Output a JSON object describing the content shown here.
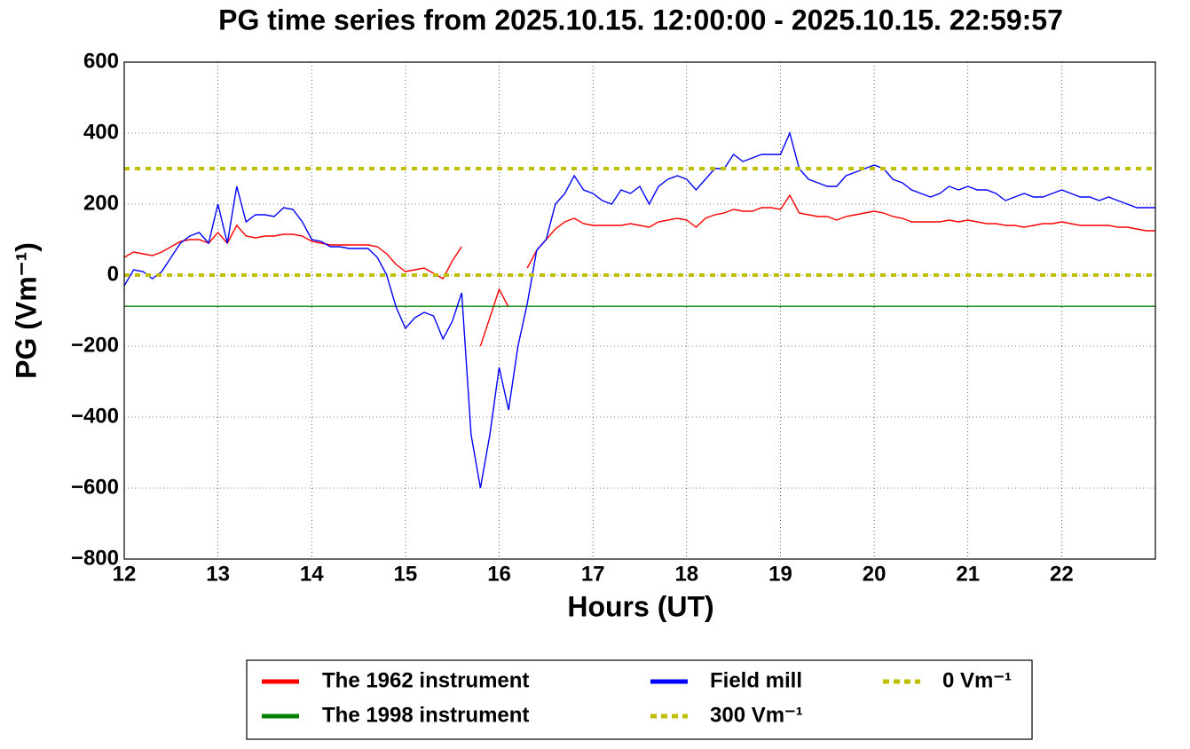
{
  "chart_data": {
    "type": "line",
    "title": "PG time series from 2025.10.15. 12:00:00 - 2025.10.15. 22:59:57",
    "xlabel": "Hours (UT)",
    "ylabel": "PG (Vm⁻¹)",
    "xlim": [
      12,
      23
    ],
    "ylim": [
      -800,
      600
    ],
    "xticks": [
      12,
      13,
      14,
      15,
      16,
      17,
      18,
      19,
      20,
      21,
      22
    ],
    "yticks": [
      {
        "value": 600,
        "label": "600"
      },
      {
        "value": 400,
        "label": "400"
      },
      {
        "value": 200,
        "label": "200"
      },
      {
        "value": 0,
        "label": "0"
      },
      {
        "value": -200,
        "label": "−200"
      },
      {
        "value": -400,
        "label": "−400"
      },
      {
        "value": -600,
        "label": "−600"
      },
      {
        "value": -800,
        "label": "−800"
      }
    ],
    "grid": true,
    "legend": "lower center",
    "x": [
      12,
      12.1,
      12.2,
      12.3,
      12.4,
      12.5,
      12.6,
      12.7,
      12.8,
      12.9,
      13,
      13.1,
      13.2,
      13.3,
      13.4,
      13.5,
      13.6,
      13.7,
      13.8,
      13.9,
      14,
      14.1,
      14.2,
      14.3,
      14.4,
      14.5,
      14.6,
      14.7,
      14.8,
      14.9,
      15,
      15.1,
      15.2,
      15.3,
      15.4,
      15.5,
      15.6,
      15.7,
      15.8,
      15.9,
      16,
      16.1,
      16.2,
      16.3,
      16.4,
      16.5,
      16.6,
      16.7,
      16.8,
      16.9,
      17,
      17.1,
      17.2,
      17.3,
      17.4,
      17.5,
      17.6,
      17.7,
      17.8,
      17.9,
      18,
      18.1,
      18.2,
      18.3,
      18.4,
      18.5,
      18.6,
      18.7,
      18.8,
      18.9,
      19,
      19.1,
      19.2,
      19.3,
      19.4,
      19.5,
      19.6,
      19.7,
      19.8,
      19.9,
      20,
      20.1,
      20.2,
      20.3,
      20.4,
      20.5,
      20.6,
      20.7,
      20.8,
      20.9,
      21,
      21.1,
      21.2,
      21.3,
      21.4,
      21.5,
      21.6,
      21.7,
      21.8,
      21.9,
      22,
      22.1,
      22.2,
      22.3,
      22.4,
      22.5,
      22.6,
      22.7,
      22.8,
      22.9,
      23
    ],
    "series": [
      {
        "name": "The 1962 instrument",
        "color": "#ff0000",
        "linestyle": "solid",
        "values": [
          50,
          65,
          60,
          55,
          65,
          80,
          95,
          100,
          100,
          90,
          120,
          90,
          140,
          110,
          105,
          110,
          110,
          115,
          115,
          110,
          95,
          90,
          85,
          85,
          85,
          85,
          85,
          80,
          60,
          30,
          10,
          15,
          20,
          5,
          -10,
          40,
          80,
          null,
          -200,
          -120,
          -40,
          -90,
          null,
          20,
          70,
          100,
          130,
          150,
          160,
          145,
          140,
          140,
          140,
          140,
          145,
          140,
          135,
          150,
          155,
          160,
          155,
          135,
          160,
          170,
          175,
          185,
          180,
          180,
          190,
          190,
          185,
          225,
          175,
          170,
          165,
          165,
          155,
          165,
          170,
          175,
          180,
          175,
          165,
          160,
          150,
          150,
          150,
          150,
          155,
          150,
          155,
          150,
          145,
          145,
          140,
          140,
          135,
          140,
          145,
          145,
          150,
          145,
          140,
          140,
          140,
          140,
          135,
          135,
          130,
          125,
          125
        ]
      },
      {
        "name": "The 1998 instrument",
        "color": "#008000",
        "linestyle": "solid",
        "x": [
          12,
          23
        ],
        "values": [
          -88,
          -88
        ]
      },
      {
        "name": "Field mill",
        "color": "#0000ff",
        "linestyle": "solid",
        "values": [
          -30,
          15,
          10,
          -10,
          10,
          50,
          90,
          110,
          120,
          90,
          200,
          90,
          250,
          150,
          170,
          170,
          165,
          190,
          185,
          150,
          100,
          95,
          80,
          80,
          75,
          75,
          75,
          50,
          0,
          -90,
          -150,
          -120,
          -105,
          -115,
          -180,
          -130,
          -50,
          -450,
          -600,
          -450,
          -260,
          -380,
          -200,
          -80,
          70,
          100,
          200,
          230,
          280,
          240,
          230,
          210,
          200,
          240,
          230,
          250,
          200,
          250,
          270,
          280,
          270,
          240,
          270,
          300,
          300,
          340,
          320,
          330,
          340,
          340,
          340,
          400,
          300,
          270,
          260,
          250,
          250,
          280,
          290,
          300,
          310,
          300,
          270,
          260,
          240,
          230,
          220,
          230,
          250,
          240,
          250,
          240,
          240,
          230,
          210,
          220,
          230,
          220,
          220,
          230,
          240,
          230,
          220,
          220,
          210,
          220,
          210,
          200,
          190,
          190,
          190
        ]
      },
      {
        "name": "300 Vm⁻¹",
        "color": "#bfbf00",
        "linestyle": "dashed",
        "x": [
          12,
          23
        ],
        "values": [
          300,
          300
        ]
      },
      {
        "name": "0 Vm⁻¹",
        "color": "#bfbf00",
        "linestyle": "dashed",
        "x": [
          12,
          23
        ],
        "values": [
          0,
          0
        ]
      }
    ]
  }
}
